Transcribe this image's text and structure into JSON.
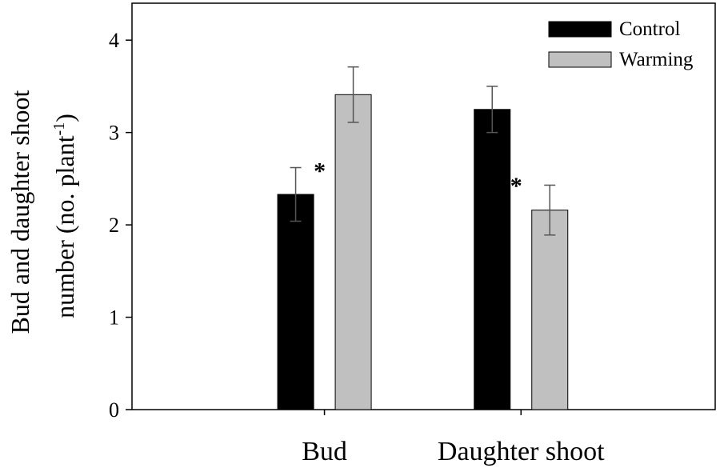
{
  "chart_data": {
    "type": "bar",
    "title": "",
    "xlabel": "",
    "ylabel_line1": "Bud and daughter shoot",
    "ylabel_line2_main": "number (no. plant",
    "ylabel_line2_sup": "-1",
    "ylabel_line2_end": ")",
    "ylim": [
      0,
      4.4
    ],
    "yticks": [
      "0",
      "1",
      "2",
      "3",
      "4"
    ],
    "categories": [
      "Bud",
      "Daughter shoot"
    ],
    "series": [
      {
        "name": "Control",
        "color": "#000000",
        "values": [
          2.33,
          3.25
        ],
        "errors": [
          0.29,
          0.25
        ]
      },
      {
        "name": "Warming",
        "color": "#c0c0c0",
        "values": [
          3.41,
          2.16
        ],
        "errors": [
          0.3,
          0.27
        ]
      }
    ],
    "significance": [
      "*",
      "*"
    ],
    "legend": {
      "position": "top-right",
      "entries": [
        "Control",
        "Warming"
      ]
    }
  }
}
